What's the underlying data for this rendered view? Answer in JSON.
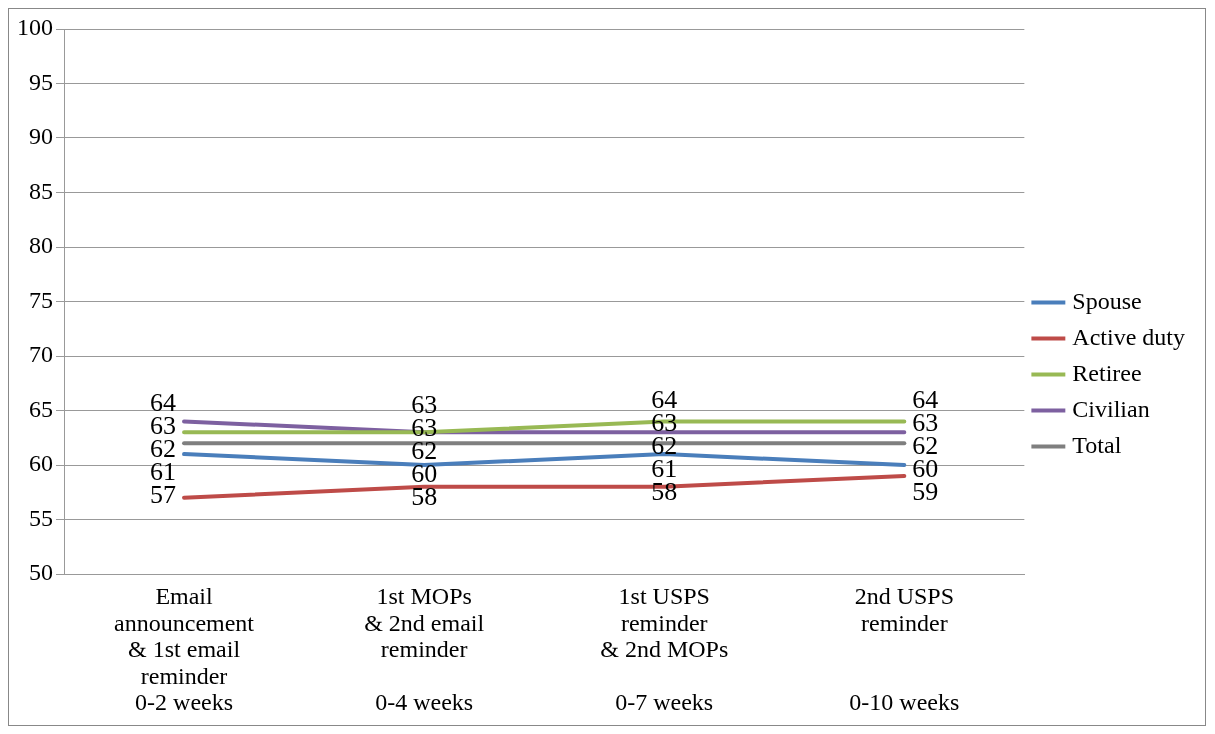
{
  "chart_data": {
    "type": "line",
    "categories": [
      "Email\nannouncement\n& 1st email\nreminder\n0-2 weeks",
      "1st MOPs\n& 2nd email\nreminder\n\n0-4 weeks",
      "1st USPS\nreminder\n& 2nd MOPs\n\n0-7 weeks",
      "2nd USPS\nreminder\n\n\n0-10 weeks"
    ],
    "series": [
      {
        "name": "Spouse",
        "color": "#4a7ebb",
        "values": [
          61,
          60,
          61,
          60
        ]
      },
      {
        "name": "Active duty",
        "color": "#be4b48",
        "values": [
          57,
          58,
          58,
          59
        ]
      },
      {
        "name": "Retiree",
        "color": "#98b954",
        "values": [
          63,
          63,
          64,
          64
        ]
      },
      {
        "name": "Civilian",
        "color": "#7d60a0",
        "values": [
          64,
          63,
          63,
          63
        ]
      },
      {
        "name": "Total",
        "color": "#7f7f7f",
        "values": [
          62,
          62,
          62,
          62
        ]
      }
    ],
    "ylim": [
      50,
      100
    ],
    "yticks": [
      50,
      55,
      60,
      65,
      70,
      75,
      80,
      85,
      90,
      95,
      100
    ],
    "grid": "y",
    "legend": "right",
    "marker": "none",
    "line_style": "solid",
    "data_labels": true
  }
}
